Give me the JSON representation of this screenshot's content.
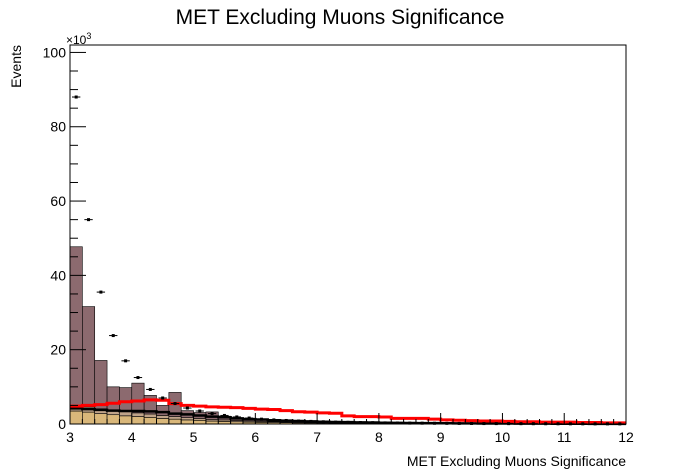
{
  "chart_data": {
    "type": "bar",
    "title": "MET Excluding Muons Significance",
    "xlabel": "MET Excluding Muons Significance",
    "ylabel": "Events",
    "y_multiplier_label": "×10",
    "y_multiplier_exponent": "3",
    "xlim": [
      3,
      12
    ],
    "ylim": [
      0,
      102
    ],
    "x_ticks": [
      "3",
      "4",
      "5",
      "6",
      "7",
      "8",
      "9",
      "10",
      "11",
      "12"
    ],
    "y_ticks": [
      "0",
      "20",
      "40",
      "60",
      "80",
      "100"
    ],
    "bin_edges": [
      3,
      3.2,
      3.4,
      3.6,
      3.8,
      4.0,
      4.2,
      4.4,
      4.6,
      4.8,
      5.0,
      5.2,
      5.4,
      5.6,
      5.8,
      6.0,
      6.2,
      6.4,
      6.6,
      6.8,
      7.0,
      7.2,
      7.4,
      7.6,
      7.8,
      8.0,
      8.2,
      8.4,
      8.6,
      8.8,
      9.0,
      9.2,
      9.4,
      9.6,
      9.8,
      10.0,
      10.2,
      10.4,
      10.6,
      10.8,
      11.0,
      11.2,
      11.4,
      11.6,
      11.8,
      12.0
    ],
    "series": [
      {
        "name": "",
        "kind": "stack",
        "color": "#d9b77a",
        "values": [
          3.5,
          3.2,
          2.8,
          2.5,
          2.2,
          2.0,
          1.8,
          1.5,
          1.3,
          1.1,
          1.0,
          0.8,
          0.7,
          0.6,
          0.5,
          0.45,
          0.4,
          0.35,
          0.3,
          0.28,
          0.25,
          0.22,
          0.2,
          0.18,
          0.16,
          0.14,
          0.12,
          0.1,
          0.1,
          0.09,
          0.08,
          0.07,
          0.06,
          0.06,
          0.05,
          0.05,
          0.04,
          0.04,
          0.03,
          0.03,
          0.03,
          0.02,
          0.02,
          0.02,
          0.02
        ]
      },
      {
        "name": "",
        "kind": "stack",
        "color": "#bfa389",
        "values": [
          1.5,
          1.4,
          1.3,
          1.2,
          1.1,
          1.0,
          0.9,
          0.8,
          0.7,
          0.6,
          0.5,
          0.45,
          0.4,
          0.35,
          0.3,
          0.25,
          0.22,
          0.2,
          0.18,
          0.16,
          0.14,
          0.12,
          0.1,
          0.09,
          0.08,
          0.07,
          0.06,
          0.05,
          0.05,
          0.04,
          0.04,
          0.03,
          0.03,
          0.03,
          0.02,
          0.02,
          0.02,
          0.02,
          0.01,
          0.01,
          0.01,
          0.01,
          0.01,
          0.01,
          0.01
        ]
      },
      {
        "name": "",
        "kind": "stack",
        "color": "#8c6a6f",
        "values": [
          42.7,
          27.0,
          13.0,
          6.3,
          6.5,
          8.0,
          5.0,
          2.7,
          6.5,
          1.9,
          1.6,
          2.0,
          1.0,
          0.6,
          0.5,
          0.4,
          0.35,
          0.3,
          0.25,
          0.2,
          0.2,
          0.15,
          0.12,
          0.1,
          0.1,
          0.08,
          0.07,
          0.06,
          0.05,
          0.05,
          0.04,
          0.04,
          0.03,
          0.03,
          0.03,
          0.02,
          0.02,
          0.02,
          0.02,
          0.02,
          0.01,
          0.01,
          0.01,
          0.01,
          0.01
        ]
      },
      {
        "name": "",
        "kind": "line",
        "color": "#000000",
        "width": 2.5,
        "values": [
          4.2,
          4.0,
          3.8,
          3.6,
          3.5,
          3.5,
          3.4,
          3.2,
          2.8,
          2.6,
          2.3,
          2.0,
          1.8,
          1.5,
          1.3,
          1.2,
          1.0,
          0.9,
          0.8,
          0.7,
          0.6,
          0.55,
          0.5,
          0.45,
          0.4,
          0.35,
          0.3,
          0.28,
          0.25,
          0.22,
          0.2,
          0.18,
          0.16,
          0.15,
          0.14,
          0.12,
          0.1,
          0.1,
          0.09,
          0.08,
          0.07,
          0.06,
          0.05,
          0.05,
          0.05
        ]
      },
      {
        "name": "",
        "kind": "line",
        "color": "#ff0000",
        "width": 3,
        "values": [
          4.8,
          5.0,
          5.2,
          5.6,
          6.0,
          6.2,
          6.5,
          6.4,
          5.5,
          5.0,
          4.8,
          4.6,
          4.5,
          4.4,
          4.2,
          4.0,
          3.9,
          3.6,
          3.3,
          3.2,
          3.0,
          2.9,
          2.2,
          2.0,
          2.0,
          1.9,
          1.5,
          1.5,
          1.5,
          1.3,
          1.1,
          1.0,
          0.9,
          0.8,
          0.8,
          0.7,
          0.6,
          0.6,
          0.5,
          0.5,
          0.5,
          0.4,
          0.4,
          0.3,
          0.3
        ]
      },
      {
        "name": "",
        "kind": "points",
        "color": "#000000",
        "values": [
          88,
          55,
          35.5,
          23.8,
          17,
          12.5,
          9.3,
          7.0,
          5.5,
          4.3,
          3.5,
          2.8,
          2.3,
          1.9,
          1.6,
          1.3,
          1.1,
          0.95,
          0.8,
          0.7,
          0.6,
          0.5,
          0.45,
          0.4,
          0.35,
          0.3,
          0.27,
          0.24,
          0.22,
          0.2,
          0.18,
          0.16,
          0.14,
          0.12,
          0.11,
          0.1,
          0.09,
          0.08,
          0.07,
          0.06,
          0.05,
          0.05,
          0.04,
          0.04,
          0.03
        ]
      }
    ],
    "grid": false,
    "legend": "none"
  }
}
